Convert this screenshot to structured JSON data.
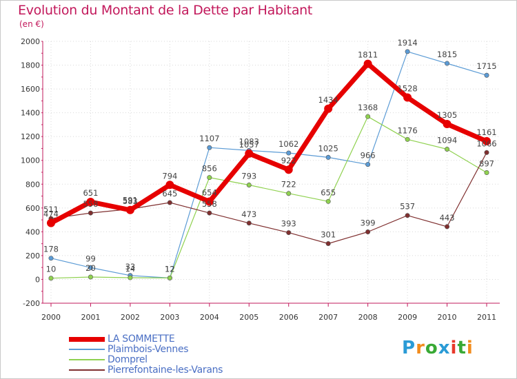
{
  "title": "Evolution du Montant de la Dette par Habitant",
  "unit_label": "(en €)",
  "brand": "Proxiti",
  "brand_colors": [
    "#2a9bd6",
    "#f28c1d",
    "#39a935",
    "#2a9bd6",
    "#e8392b",
    "#39a935",
    "#f28c1d"
  ],
  "chart_data": {
    "type": "line",
    "x": [
      "2000",
      "2001",
      "2002",
      "2003",
      "2004",
      "2005",
      "2006",
      "2007",
      "2008",
      "2009",
      "2010",
      "2011"
    ],
    "ylim": [
      -200,
      2000
    ],
    "yticks": [
      -200,
      0,
      200,
      400,
      600,
      800,
      1000,
      1200,
      1400,
      1600,
      1800,
      2000
    ],
    "grid": true,
    "legend_position": "bottom-left",
    "series": [
      {
        "name": "LA SOMMETTE",
        "color": "#e60000",
        "bold": true,
        "values": [
          474,
          651,
          583,
          794,
          654,
          1057,
          922,
          1434,
          1811,
          1528,
          1305,
          1161
        ]
      },
      {
        "name": "Plaimbois-Vennes",
        "color": "#5b9bd5",
        "bold": false,
        "values": [
          178,
          99,
          33,
          12,
          null,
          1083,
          1062,
          1025,
          966,
          1914,
          1815,
          1715
        ]
      },
      {
        "name": "Domprel",
        "color": "#8fd14f",
        "bold": false,
        "values": [
          10,
          20,
          14,
          12,
          856,
          793,
          722,
          655,
          1368,
          1176,
          1094,
          897
        ]
      },
      {
        "name": "Pierrefontaine-les-Varans",
        "color": "#7f2f2f",
        "bold": false,
        "values": [
          511,
          558,
          591,
          645,
          558,
          473,
          393,
          301,
          399,
          537,
          443,
          1066
        ]
      }
    ],
    "segments_notes": "Plaimbois-Vennes 2003 point connects to 2004 at 1107",
    "extra_points": [
      {
        "series": "Plaimbois-Vennes",
        "x": "2004",
        "value": 1107
      }
    ]
  }
}
